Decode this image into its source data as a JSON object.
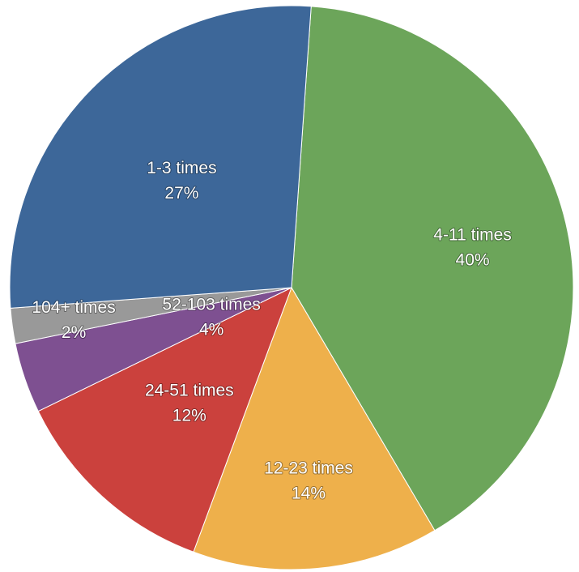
{
  "chart_data": {
    "type": "pie",
    "slices": [
      {
        "label": "4-11 times",
        "value": 40,
        "value_label": "40%",
        "color": "#6ca55a"
      },
      {
        "label": "12-23 times",
        "value": 14,
        "value_label": "14%",
        "color": "#eeb04b"
      },
      {
        "label": "24-51 times",
        "value": 12,
        "value_label": "12%",
        "color": "#cb413d"
      },
      {
        "label": "52-103 times",
        "value": 4,
        "value_label": "4%",
        "color": "#7e5091"
      },
      {
        "label": "104+ times",
        "value": 2,
        "value_label": "2%",
        "color": "#999999"
      },
      {
        "label": "1-3 times",
        "value": 27,
        "value_label": "27%",
        "color": "#3d6799"
      }
    ],
    "start_angle_deg": 4,
    "direction": "clockwise",
    "legend": "none"
  }
}
